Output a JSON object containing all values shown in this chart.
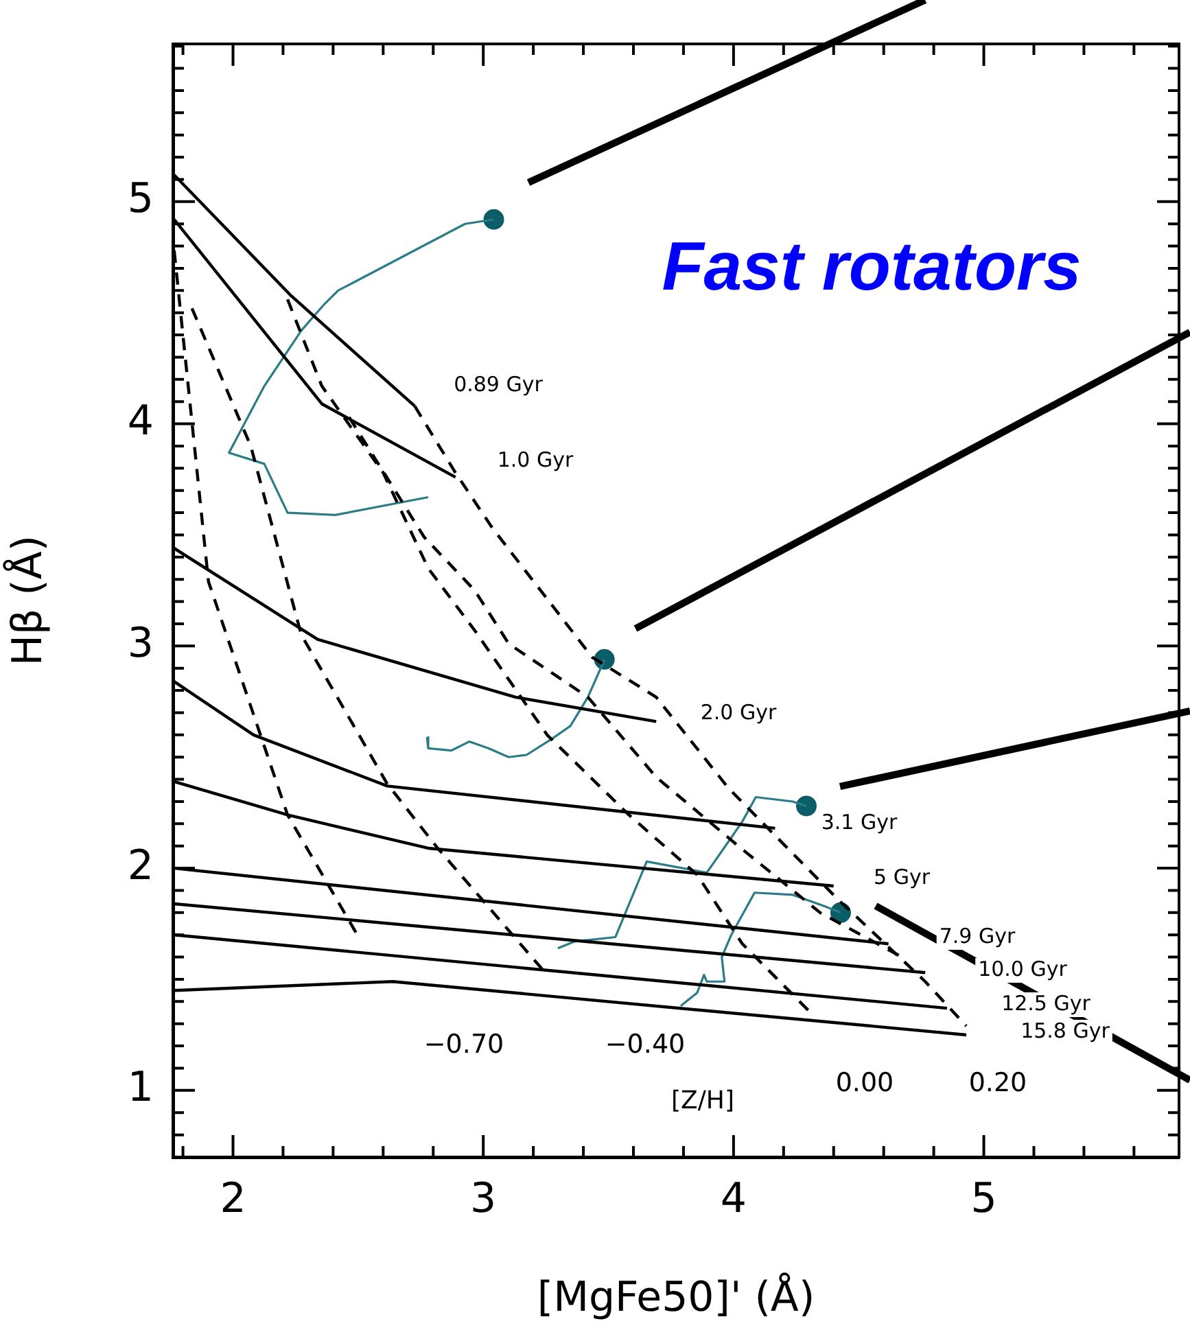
{
  "chart_data": {
    "type": "line",
    "xlabel": "[MgFe50]' (Å)",
    "ylabel": "Hβ (Å)",
    "xlim": [
      1.76,
      5.78
    ],
    "ylim": [
      0.7,
      5.71
    ],
    "xticks": [
      {
        "value": 1.8,
        "label": null
      },
      2,
      {
        "value": 2.2,
        "label": null
      },
      {
        "value": 2.4,
        "label": null
      },
      {
        "value": 2.6,
        "label": null
      },
      {
        "value": 2.8,
        "label": null
      },
      3,
      {
        "value": 3.2,
        "label": null
      },
      {
        "value": 3.4,
        "label": null
      },
      {
        "value": 3.6,
        "label": null
      },
      {
        "value": 3.8,
        "label": null
      },
      4,
      {
        "value": 4.2,
        "label": null
      },
      {
        "value": 4.4,
        "label": null
      },
      {
        "value": 4.6,
        "label": null
      },
      {
        "value": 4.8,
        "label": null
      },
      5,
      {
        "value": 5.2,
        "label": null
      },
      {
        "value": 5.4,
        "label": null
      },
      {
        "value": 5.6,
        "label": null
      }
    ],
    "yticks": [
      {
        "value": 0.8,
        "label": null
      },
      {
        "value": 0.9,
        "label": null
      },
      1,
      {
        "value": 1.1,
        "label": null
      },
      {
        "value": 1.2,
        "label": null
      },
      {
        "value": 1.3,
        "label": null
      },
      {
        "value": 1.4,
        "label": null
      },
      {
        "value": 1.5,
        "label": null
      },
      {
        "value": 1.6,
        "label": null
      },
      {
        "value": 1.7,
        "label": null
      },
      {
        "value": 1.8,
        "label": null
      },
      {
        "value": 1.9,
        "label": null
      },
      2,
      {
        "value": 2.1,
        "label": null
      },
      {
        "value": 2.2,
        "label": null
      },
      {
        "value": 2.3,
        "label": null
      },
      {
        "value": 2.4,
        "label": null
      },
      {
        "value": 2.5,
        "label": null
      },
      {
        "value": 2.6,
        "label": null
      },
      {
        "value": 2.7,
        "label": null
      },
      {
        "value": 2.8,
        "label": null
      },
      {
        "value": 2.9,
        "label": null
      },
      3,
      {
        "value": 3.1,
        "label": null
      },
      {
        "value": 3.2,
        "label": null
      },
      {
        "value": 3.3,
        "label": null
      },
      {
        "value": 3.4,
        "label": null
      },
      {
        "value": 3.5,
        "label": null
      },
      {
        "value": 3.6,
        "label": null
      },
      {
        "value": 3.7,
        "label": null
      },
      {
        "value": 3.8,
        "label": null
      },
      {
        "value": 3.9,
        "label": null
      },
      4,
      {
        "value": 4.1,
        "label": null
      },
      {
        "value": 4.2,
        "label": null
      },
      {
        "value": 4.3,
        "label": null
      },
      {
        "value": 4.4,
        "label": null
      },
      {
        "value": 4.5,
        "label": null
      },
      {
        "value": 4.6,
        "label": null
      },
      {
        "value": 4.7,
        "label": null
      },
      {
        "value": 4.8,
        "label": null
      },
      {
        "value": 4.9,
        "label": null
      },
      5,
      {
        "value": 5.1,
        "label": null
      },
      {
        "value": 5.2,
        "label": null
      },
      {
        "value": 5.3,
        "label": null
      },
      {
        "value": 5.4,
        "label": null
      },
      {
        "value": 5.5,
        "label": null
      },
      {
        "value": 5.6,
        "label": null
      },
      {
        "value": 5.7,
        "label": null
      }
    ],
    "grid": false,
    "legend": false,
    "series": [
      {
        "color": "#000000",
        "line_style": "solid",
        "marker": "none",
        "x": [
          1.765,
          2.229,
          2.726
        ],
        "values": [
          5.12,
          4.58,
          4.08
        ]
      },
      {
        "color": "#000000",
        "line_style": "solid",
        "marker": "none",
        "x": [
          1.765,
          2.355,
          2.889
        ],
        "values": [
          4.92,
          4.09,
          3.76
        ]
      },
      {
        "color": "#000000",
        "line_style": "solid",
        "marker": "none",
        "x": [
          1.765,
          2.338,
          3.129,
          3.691
        ],
        "values": [
          3.44,
          3.03,
          2.77,
          2.66
        ]
      },
      {
        "color": "#000000",
        "line_style": "solid",
        "marker": "none",
        "x": [
          1.765,
          2.082,
          2.617,
          4.166
        ],
        "values": [
          2.84,
          2.6,
          2.37,
          2.18
        ]
      },
      {
        "color": "#000000",
        "line_style": "solid",
        "marker": "none",
        "x": [
          1.765,
          2.218,
          2.78,
          4.4
        ],
        "values": [
          2.39,
          2.24,
          2.09,
          1.92
        ]
      },
      {
        "color": "#000000",
        "line_style": "solid",
        "marker": "none",
        "x": [
          1.765,
          4.619
        ],
        "values": [
          2.0,
          1.66
        ]
      },
      {
        "color": "#000000",
        "line_style": "solid",
        "marker": "none",
        "x": [
          1.765,
          4.766
        ],
        "values": [
          1.84,
          1.53
        ]
      },
      {
        "color": "#000000",
        "line_style": "solid",
        "marker": "none",
        "x": [
          1.765,
          4.853
        ],
        "values": [
          1.7,
          1.37
        ]
      },
      {
        "color": "#000000",
        "line_style": "solid",
        "marker": "none",
        "x": [
          1.765,
          2.638,
          4.93
        ],
        "values": [
          1.45,
          1.49,
          1.25
        ]
      },
      {
        "color": "#000000",
        "line_style": "dashed",
        "marker": "none",
        "x": [
          1.765,
          1.902,
          2.218,
          2.507
        ],
        "values": [
          4.78,
          3.29,
          2.24,
          1.68
        ]
      },
      {
        "color": "#000000",
        "line_style": "dashed",
        "marker": "none",
        "x": [
          1.836,
          2.071,
          2.273,
          2.616,
          2.818,
          3.255
        ],
        "values": [
          4.52,
          3.9,
          3.05,
          2.38,
          2.09,
          1.52
        ]
      },
      {
        "color": "#000000",
        "line_style": "dashed",
        "marker": "none",
        "x": [
          2.218,
          2.355,
          2.6,
          2.78,
          2.966,
          3.255,
          3.582,
          3.855,
          4.035,
          4.308
        ],
        "values": [
          4.56,
          4.17,
          3.78,
          3.35,
          3.07,
          2.6,
          2.24,
          1.97,
          1.66,
          1.35
        ]
      },
      {
        "color": "#000000",
        "line_style": "dashed",
        "marker": "none",
        "x": [
          2.464,
          2.764,
          2.966,
          3.102,
          3.418,
          3.691,
          4.019,
          4.346,
          4.673
        ],
        "values": [
          4.03,
          3.49,
          3.25,
          3.01,
          2.77,
          2.41,
          2.1,
          1.8,
          1.6
        ]
      },
      {
        "color": "#000000",
        "line_style": "dashed",
        "marker": "none",
        "x": [
          2.726,
          2.889,
          3.037,
          3.435,
          3.691,
          3.98,
          4.417,
          4.766,
          4.93
        ],
        "values": [
          4.08,
          3.78,
          3.53,
          2.95,
          2.77,
          2.36,
          1.86,
          1.49,
          1.29
        ]
      },
      {
        "color": "#2b7b89",
        "line_style": "solid",
        "marker": "none",
        "x": [
          2.78,
          2.409,
          2.218,
          2.125,
          1.984,
          2.125,
          2.273,
          2.366,
          2.42,
          2.927,
          3.042
        ],
        "values": [
          3.67,
          3.59,
          3.6,
          3.82,
          3.87,
          4.17,
          4.42,
          4.54,
          4.6,
          4.9,
          4.92
        ]
      },
      {
        "color": "#2b7b89",
        "line_style": "solid",
        "marker": "none",
        "x": [
          2.775,
          2.78,
          2.873,
          2.944,
          3.02,
          3.102,
          3.173,
          3.271,
          3.348,
          3.418,
          3.473,
          3.484
        ],
        "values": [
          2.59,
          2.54,
          2.53,
          2.57,
          2.54,
          2.5,
          2.51,
          2.58,
          2.64,
          2.77,
          2.91,
          2.94
        ]
      },
      {
        "color": "#2b7b89",
        "line_style": "solid",
        "marker": "none",
        "x": [
          3.298,
          3.364,
          3.528,
          3.653,
          3.893,
          3.98,
          4.035,
          4.089,
          4.237,
          4.291
        ],
        "values": [
          1.64,
          1.67,
          1.69,
          2.03,
          1.98,
          2.12,
          2.21,
          2.32,
          2.3,
          2.28
        ]
      },
      {
        "color": "#2b7b89",
        "line_style": "solid",
        "marker": "none",
        "x": [
          3.789,
          3.855,
          3.882,
          3.893,
          3.964,
          3.953,
          3.991,
          4.084,
          4.237,
          4.362,
          4.428
        ],
        "values": [
          1.38,
          1.44,
          1.52,
          1.49,
          1.49,
          1.6,
          1.7,
          1.89,
          1.88,
          1.83,
          1.8
        ]
      },
      {
        "type": "scatter",
        "color": "#0b5d68",
        "marker": "circle",
        "x": [
          3.042,
          3.484,
          4.291,
          4.428
        ],
        "values": [
          4.92,
          2.94,
          2.28,
          1.8
        ]
      }
    ],
    "annotations": [
      "Fast rotators",
      "0.89 Gyr",
      "1.0 Gyr",
      "2.0 Gyr",
      "3.1 Gyr",
      "5 Gyr",
      "7.9 Gyr",
      "10.0 Gyr",
      "12.5 Gyr",
      "15.8 Gyr",
      "−0.70",
      "−0.40",
      "[Z/H]",
      "0.00",
      "0.20"
    ]
  }
}
